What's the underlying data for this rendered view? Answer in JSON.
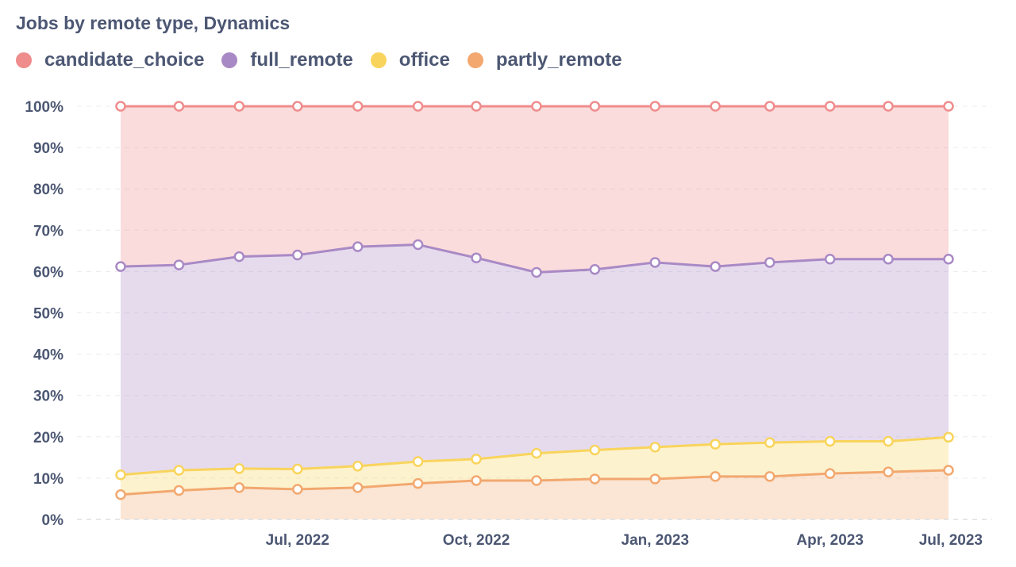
{
  "chart_data": {
    "type": "area",
    "stacked": true,
    "normalized": true,
    "title": "Jobs by remote type, Dynamics",
    "x": [
      "2022-04-01",
      "2022-05-01",
      "2022-06-01",
      "2022-07-01",
      "2022-08-01",
      "2022-09-01",
      "2022-10-01",
      "2022-11-01",
      "2022-12-01",
      "2023-01-01",
      "2023-02-01",
      "2023-03-01",
      "2023-04-01",
      "2023-05-01",
      "2023-06-01"
    ],
    "x_ticks": [
      {
        "label": "Jul, 2022",
        "x": "2022-07-01"
      },
      {
        "label": "Oct, 2022",
        "x": "2022-10-01"
      },
      {
        "label": "Jan, 2023",
        "x": "2023-01-01"
      },
      {
        "label": "Apr, 2023",
        "x": "2023-04-01"
      },
      {
        "label": "Jul, 2023",
        "x": "2023-07-01"
      }
    ],
    "y_ticks": [
      "0%",
      "10%",
      "20%",
      "30%",
      "40%",
      "50%",
      "60%",
      "70%",
      "80%",
      "90%",
      "100%"
    ],
    "ylim": [
      0,
      100
    ],
    "grid": true,
    "legend_position": "top-left",
    "series": [
      {
        "name": "partly_remote",
        "color": "#f2a86f",
        "cumulative": [
          6,
          7,
          7.7,
          7.3,
          7.7,
          8.7,
          9.4,
          9.4,
          9.8,
          9.8,
          10.4,
          10.4,
          11.1,
          11.5,
          11.9
        ]
      },
      {
        "name": "office",
        "color": "#f9d45c",
        "cumulative": [
          10.8,
          11.9,
          12.3,
          12.2,
          12.9,
          14,
          14.6,
          16,
          16.8,
          17.5,
          18.2,
          18.6,
          18.9,
          18.9,
          19.9
        ]
      },
      {
        "name": "full_remote",
        "color": "#a989c5",
        "cumulative": [
          61.2,
          61.6,
          63.6,
          64,
          66,
          66.5,
          63.3,
          59.8,
          60.5,
          62.2,
          61.2,
          62.2,
          63,
          63,
          63
        ]
      },
      {
        "name": "candidate_choice",
        "color": "#ef8c8c",
        "cumulative": [
          100,
          100,
          100,
          100,
          100,
          100,
          100,
          100,
          100,
          100,
          100,
          100,
          100,
          100,
          100
        ]
      }
    ],
    "legend": [
      {
        "name": "candidate_choice",
        "color": "#ef8c8c"
      },
      {
        "name": "full_remote",
        "color": "#a989c5"
      },
      {
        "name": "office",
        "color": "#f9d45c"
      },
      {
        "name": "partly_remote",
        "color": "#f2a86f"
      }
    ]
  }
}
